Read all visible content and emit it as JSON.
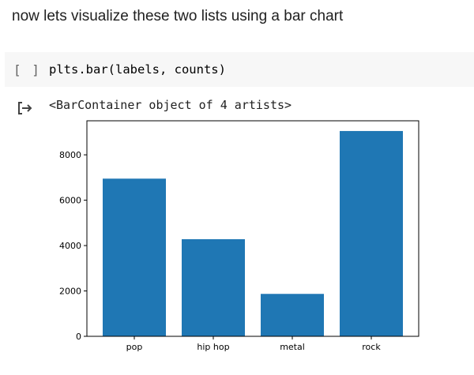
{
  "markdown": {
    "text": "now lets visualize these two lists using a bar chart"
  },
  "code_cell": {
    "run_indicator": "[ ]",
    "code": "plts.bar(labels, counts)"
  },
  "output": {
    "icon": "output-arrow-icon",
    "text": "<BarContainer object of 4 artists>"
  },
  "colors": {
    "bar": "#1f77b4",
    "code_bg": "#f7f7f7"
  },
  "chart_data": {
    "type": "bar",
    "categories": [
      "pop",
      "hip hop",
      "metal",
      "rock"
    ],
    "values": [
      6950,
      4280,
      1870,
      9050
    ],
    "title": "",
    "xlabel": "",
    "ylabel": "",
    "ylim": [
      0,
      9500
    ],
    "yticks": [
      0,
      2000,
      4000,
      6000,
      8000
    ],
    "grid": false
  }
}
